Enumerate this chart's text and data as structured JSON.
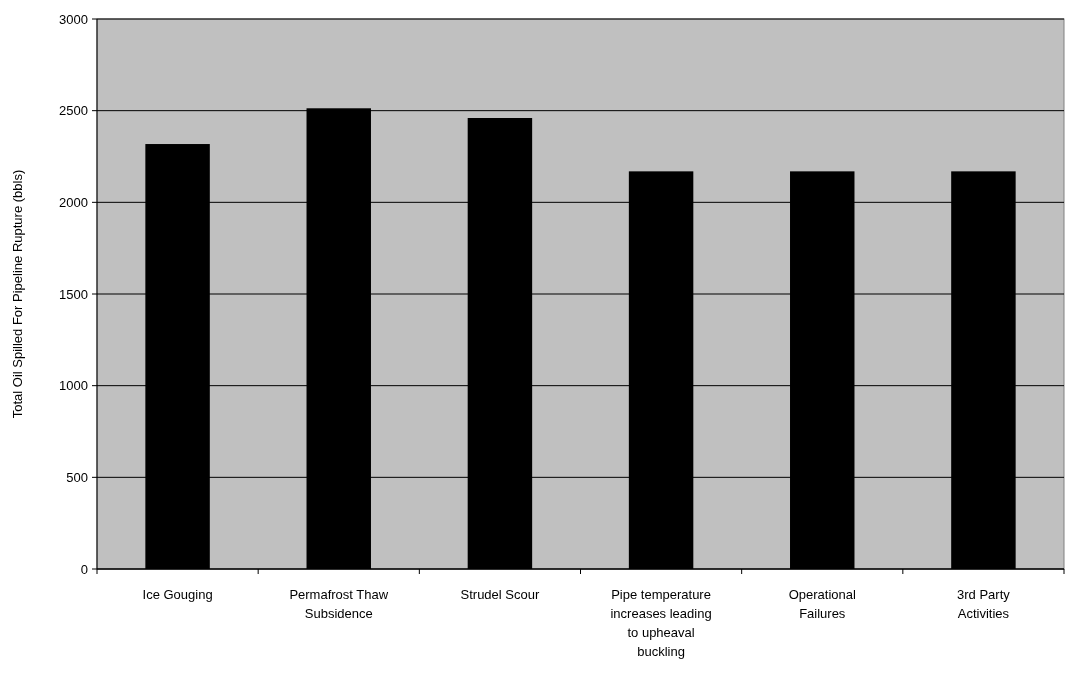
{
  "chart_data": {
    "type": "bar",
    "categories": [
      "Ice Gouging",
      "Permafrost Thaw Subsidence",
      "Strudel Scour",
      "Pipe temperature increases leading to upheaval buckling",
      "Operational Failures",
      "3rd Party Activities"
    ],
    "values": [
      2318,
      2513,
      2460,
      2169,
      2169,
      2169
    ],
    "color": "#000000",
    "ylabel": "Total Oil Spilled For Pipeline Rupture (bbls)",
    "ylim": [
      0,
      3000
    ],
    "yticks": [
      0,
      500,
      1000,
      1500,
      2000,
      2500,
      3000
    ],
    "grid": "y"
  }
}
